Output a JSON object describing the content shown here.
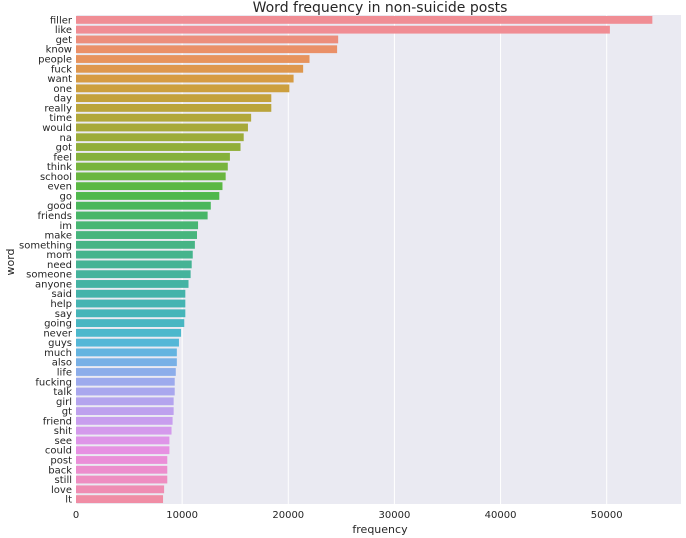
{
  "chart_data": {
    "type": "bar",
    "orientation": "horizontal",
    "title": "Word frequency in non-suicide posts",
    "xlabel": "frequency",
    "ylabel": "word",
    "xlim": [
      0,
      57000
    ],
    "xticks": [
      0,
      10000,
      20000,
      30000,
      40000,
      50000
    ],
    "xtick_labels": [
      "0",
      "10000",
      "20000",
      "30000",
      "40000",
      "50000"
    ],
    "grid": true,
    "background": "#eaeaf2",
    "categories": [
      "filler",
      "like",
      "get",
      "know",
      "people",
      "fuck",
      "want",
      "one",
      "day",
      "really",
      "time",
      "would",
      "na",
      "got",
      "feel",
      "think",
      "school",
      "even",
      "go",
      "good",
      "friends",
      "im",
      "make",
      "something",
      "mom",
      "need",
      "someone",
      "anyone",
      "said",
      "help",
      "say",
      "going",
      "never",
      "guys",
      "much",
      "also",
      "life",
      "fucking",
      "talk",
      "girl",
      "gt",
      "friend",
      "shit",
      "see",
      "could",
      "post",
      "back",
      "still",
      "love",
      "lt"
    ],
    "values": [
      54300,
      50300,
      24700,
      24600,
      22000,
      21400,
      20500,
      20100,
      18400,
      18400,
      16500,
      16200,
      15800,
      15500,
      14500,
      14300,
      14100,
      13800,
      13500,
      12700,
      12400,
      11500,
      11400,
      11200,
      11000,
      10900,
      10800,
      10600,
      10300,
      10300,
      10300,
      10200,
      9900,
      9700,
      9500,
      9500,
      9400,
      9300,
      9300,
      9200,
      9200,
      9100,
      9000,
      8800,
      8800,
      8600,
      8600,
      8600,
      8300,
      8200
    ],
    "colors": [
      "#f08d94",
      "#f08d94",
      "#ec8e7c",
      "#ea9068",
      "#e7935d",
      "#de974e",
      "#d69b43",
      "#cc9f3e",
      "#c3a13c",
      "#baa43b",
      "#b1a73a",
      "#a7a93a",
      "#9cac3a",
      "#91ae3a",
      "#85b13b",
      "#78b43d",
      "#6ab63f",
      "#5bb843",
      "#4fb84d",
      "#4ab75c",
      "#48b668",
      "#47b673",
      "#47b57d",
      "#46b485",
      "#45b48d",
      "#45b394",
      "#45b39c",
      "#44b3a3",
      "#44b3aa",
      "#45b4b2",
      "#46b5b9",
      "#48b6c2",
      "#4cb8cc",
      "#55b7d7",
      "#64b4e0",
      "#78b0e6",
      "#8cadea",
      "#9daaed",
      "#a9a7ee",
      "#b4a4ee",
      "#bea1ee",
      "#c89eee",
      "#d49aec",
      "#de95e8",
      "#e691e2",
      "#ea8fd8",
      "#ec8ecd",
      "#ee8ec1",
      "#ef8db3",
      "#f08da5"
    ]
  }
}
